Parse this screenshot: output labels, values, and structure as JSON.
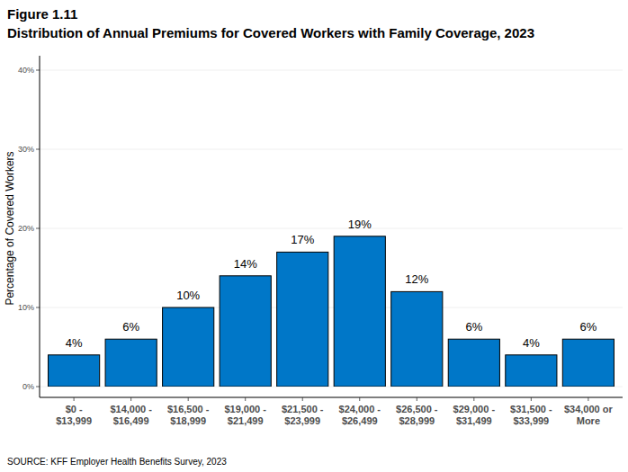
{
  "chart_data": {
    "type": "bar",
    "title": "Figure 1.11",
    "subtitle": "Distribution of Annual Premiums for Covered Workers with Family Coverage, 2023",
    "y_label": "Percentage of Covered Workers",
    "annotations": [
      "SOURCE: KFF Employer Health Benefits Survey, 2023"
    ],
    "categories": [
      "$0 - $13,999",
      "$14,000 - $16,499",
      "$16,500 - $18,999",
      "$19,000 - $21,499",
      "$21,500 - $23,999",
      "$24,000 - $26,499",
      "$26,500 - $28,999",
      "$29,000 - $31,499",
      "$31,500 - $33,999",
      "$34,000 or More"
    ],
    "values": [
      4,
      6,
      10,
      14,
      17,
      19,
      12,
      6,
      4,
      6
    ],
    "value_labels": [
      "4%",
      "6%",
      "10%",
      "14%",
      "17%",
      "19%",
      "12%",
      "6%",
      "4%",
      "6%"
    ],
    "color": "#0077c8",
    "ylim": [
      0,
      40
    ],
    "yticks": [
      {
        "value": 0,
        "label": "0%"
      },
      {
        "value": 10,
        "label": "10%"
      },
      {
        "value": 20,
        "label": "20%"
      },
      {
        "value": 30,
        "label": "30%"
      },
      {
        "value": 40,
        "label": "40%"
      }
    ],
    "grid": true,
    "data_labels": true
  }
}
